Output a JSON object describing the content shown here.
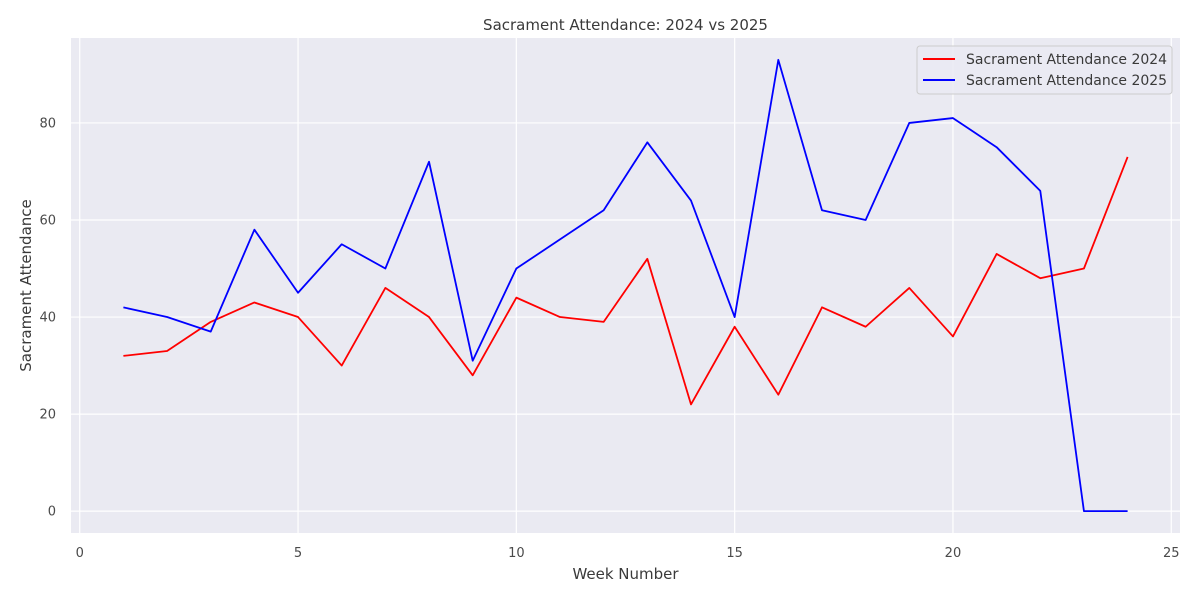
{
  "chart_data": {
    "type": "line",
    "title": "Sacrament Attendance: 2024 vs 2025",
    "xlabel": "Week Number",
    "ylabel": "Sacrament Attendance",
    "xlim": [
      -0.2,
      25.2
    ],
    "ylim": [
      -4.5,
      97.5
    ],
    "x_ticks": [
      0,
      5,
      10,
      15,
      20,
      25
    ],
    "y_ticks": [
      0,
      20,
      40,
      60,
      80
    ],
    "grid": true,
    "legend_position": "top-right",
    "x": [
      1,
      2,
      3,
      4,
      5,
      6,
      7,
      8,
      9,
      10,
      11,
      12,
      13,
      14,
      15,
      16,
      17,
      18,
      19,
      20,
      21,
      22,
      23,
      24
    ],
    "series": [
      {
        "name": "Sacrament Attendance 2024",
        "color": "#ff0000",
        "values": [
          32,
          33,
          39,
          43,
          40,
          30,
          46,
          40,
          28,
          44,
          40,
          39,
          52,
          22,
          38,
          24,
          42,
          38,
          46,
          36,
          53,
          48,
          50,
          73
        ]
      },
      {
        "name": "Sacrament Attendance 2025",
        "color": "#0000ff",
        "values": [
          42,
          40,
          37,
          58,
          45,
          55,
          50,
          72,
          31,
          50,
          56,
          62,
          76,
          64,
          40,
          93,
          62,
          60,
          80,
          81,
          75,
          66,
          0,
          0
        ]
      }
    ]
  }
}
